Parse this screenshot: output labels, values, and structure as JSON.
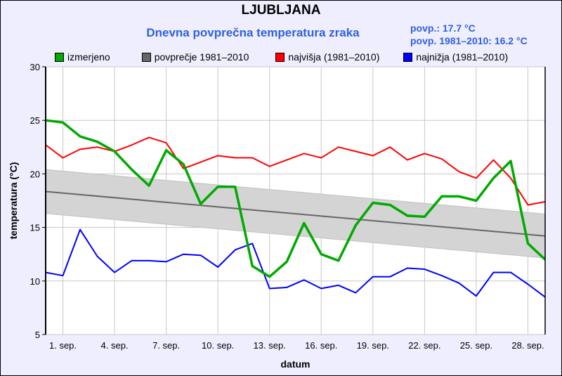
{
  "title": "LJUBLJANA",
  "subtitle": "Dnevna povprečna temperatura zraka",
  "stats": [
    "povp.: 17.7 °C",
    "povp. 1981–2010: 16.2 °C"
  ],
  "chart_data": {
    "type": "line",
    "xlabel": "datum",
    "ylabel": "temperatura (°C)",
    "ylim": [
      5,
      30
    ],
    "yticks": [
      5,
      10,
      15,
      20,
      25,
      30
    ],
    "xlim": [
      0,
      29
    ],
    "xticks": [
      1,
      4,
      7,
      10,
      13,
      16,
      19,
      22,
      25,
      28
    ],
    "xtick_labels": [
      "1. sep.",
      "4. sep.",
      "7. sep.",
      "10. sep.",
      "13. sep.",
      "16. sep.",
      "19. sep.",
      "22. sep.",
      "25. sep.",
      "28. sep."
    ],
    "grid": true,
    "legend_position": "top",
    "x": [
      0,
      1,
      2,
      3,
      4,
      5,
      6,
      7,
      8,
      9,
      10,
      11,
      12,
      13,
      14,
      15,
      16,
      17,
      18,
      19,
      20,
      21,
      22,
      23,
      24,
      25,
      26,
      27,
      28,
      29
    ],
    "series": [
      {
        "name": "izmerjeno",
        "color": "#00aa00",
        "values": [
          25.0,
          24.8,
          23.5,
          23.0,
          22.1,
          20.4,
          18.9,
          22.2,
          20.9,
          17.2,
          18.8,
          18.8,
          11.4,
          10.4,
          11.8,
          15.4,
          12.5,
          11.9,
          15.2,
          17.3,
          17.1,
          16.1,
          16.0,
          17.9,
          17.9,
          17.5,
          19.6,
          21.2,
          13.5,
          12.0
        ]
      },
      {
        "name": "povprečje 1981–2010",
        "color": "#666666",
        "start": 18.35,
        "end": 14.2,
        "band": 2.05,
        "band_color": "#d4d4d4"
      },
      {
        "name": "najvišja (1981–2010)",
        "color": "#ff0000",
        "values": [
          22.7,
          21.5,
          22.3,
          22.5,
          22.1,
          22.7,
          23.4,
          22.9,
          20.5,
          21.1,
          21.7,
          21.5,
          21.5,
          20.7,
          21.3,
          21.9,
          21.5,
          22.5,
          22.1,
          21.7,
          22.5,
          21.3,
          21.9,
          21.4,
          20.2,
          19.6,
          21.3,
          19.6,
          17.1,
          17.4
        ]
      },
      {
        "name": "najnižja (1981–2010)",
        "color": "#0000ff",
        "values": [
          10.8,
          10.5,
          14.8,
          12.3,
          10.8,
          11.9,
          11.9,
          11.8,
          12.5,
          12.4,
          11.3,
          12.9,
          13.5,
          9.3,
          9.4,
          10.1,
          9.3,
          9.6,
          8.9,
          10.4,
          10.4,
          11.2,
          11.1,
          10.5,
          9.8,
          8.6,
          10.8,
          10.8,
          9.7,
          8.5
        ]
      }
    ]
  }
}
